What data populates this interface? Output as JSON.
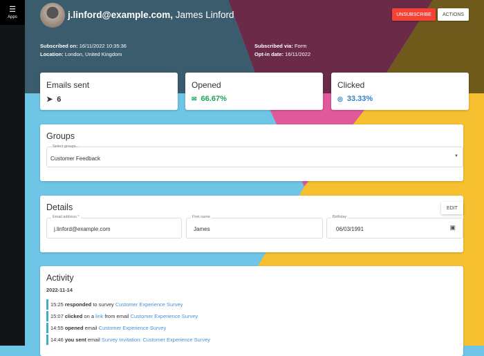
{
  "sidebar": {
    "apps_label": "Apps"
  },
  "header": {
    "email": "j.linford@example.com,",
    "name": "James Linford",
    "unsubscribe_label": "UNSUBSCRIBE",
    "actions_label": "ACTIONS",
    "subscribed_on_label": "Subscribed on:",
    "subscribed_on": "16/11/2022 10:35:36",
    "location_label": "Location:",
    "location": "London, United Kingdom",
    "subscribed_via_label": "Subscribed via:",
    "subscribed_via": "Form",
    "optin_label": "Opt-in date:",
    "optin": "16/11/2022"
  },
  "stats": [
    {
      "label": "Emails sent",
      "value": "6",
      "icon": "send-icon",
      "color": "#333333"
    },
    {
      "label": "Opened",
      "value": "66.67%",
      "icon": "mail-open-icon",
      "color": "#1aa55a"
    },
    {
      "label": "Clicked",
      "value": "33.33%",
      "icon": "click-icon",
      "color": "#2a7fc9"
    }
  ],
  "groups": {
    "title": "Groups",
    "field_label": "Select groups...",
    "value": "Customer Feedback"
  },
  "details": {
    "title": "Details",
    "edit_label": "EDIT",
    "email_label": "Email address *",
    "email": "j.linford@example.com",
    "first_name_label": "First name",
    "first_name": "James",
    "birthday_label": "Birthday",
    "birthday": "06/03/1991"
  },
  "activity": {
    "title": "Activity",
    "date": "2022-11-14",
    "items": [
      {
        "time": "15:25",
        "verb": "responded",
        "pre": "to survey",
        "link": "Customer Experience Survey"
      },
      {
        "time": "15:07",
        "verb": "clicked",
        "pre": "on a",
        "link1": "link",
        "mid": "from email",
        "link": "Customer Experience Survey"
      },
      {
        "time": "14:55",
        "verb": "opened",
        "pre": "email",
        "link": "Customer Experience Survey"
      },
      {
        "time": "14:46",
        "verb": "you sent",
        "pre": "email",
        "link": "Survey Invitation: Customer Experience Survey"
      }
    ]
  }
}
